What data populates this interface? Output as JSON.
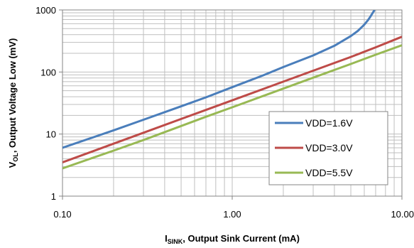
{
  "chart_data": {
    "type": "line",
    "xscale": "log",
    "yscale": "log",
    "xlim": [
      0.1,
      10
    ],
    "ylim": [
      1,
      1000
    ],
    "grid": true,
    "legend_position": "right",
    "xlabel": {
      "main": "I",
      "sub": "SINK",
      "rest": ",  Output Sink Current  (mA)"
    },
    "ylabel": {
      "main": "V",
      "sub": "OL",
      "rest": ", Output Voltage Low (mV)"
    },
    "x_ticks": [
      "0.10",
      "1.00",
      "10.00"
    ],
    "y_ticks": [
      "1",
      "10",
      "100",
      "1000"
    ],
    "series": [
      {
        "name": "VDD=1.6V",
        "color": "#4a7ebb",
        "x": [
          0.1,
          0.2,
          0.3,
          0.5,
          0.7,
          1.0,
          1.5,
          2.0,
          3.0,
          4.0,
          5.0,
          5.5,
          6.0,
          6.3,
          6.5,
          6.7,
          6.8,
          6.9
        ],
        "y": [
          6,
          11.5,
          17,
          28,
          39,
          57,
          87,
          120,
          185,
          265,
          380,
          460,
          580,
          680,
          770,
          880,
          940,
          1000
        ]
      },
      {
        "name": "VDD=3.0V",
        "color": "#be4b48",
        "x": [
          0.1,
          0.2,
          0.3,
          0.5,
          0.7,
          1.0,
          2.0,
          3.0,
          5.0,
          7.0,
          10.0
        ],
        "y": [
          3.5,
          7,
          10.5,
          17.5,
          24.5,
          35,
          70,
          105,
          175,
          250,
          370
        ]
      },
      {
        "name": "VDD=5.5V",
        "color": "#98b954",
        "x": [
          0.1,
          0.2,
          0.3,
          0.5,
          0.7,
          1.0,
          2.0,
          3.0,
          5.0,
          7.0,
          10.0
        ],
        "y": [
          2.8,
          5.4,
          8,
          13.5,
          19,
          27,
          54,
          81,
          135,
          190,
          270
        ]
      }
    ]
  }
}
